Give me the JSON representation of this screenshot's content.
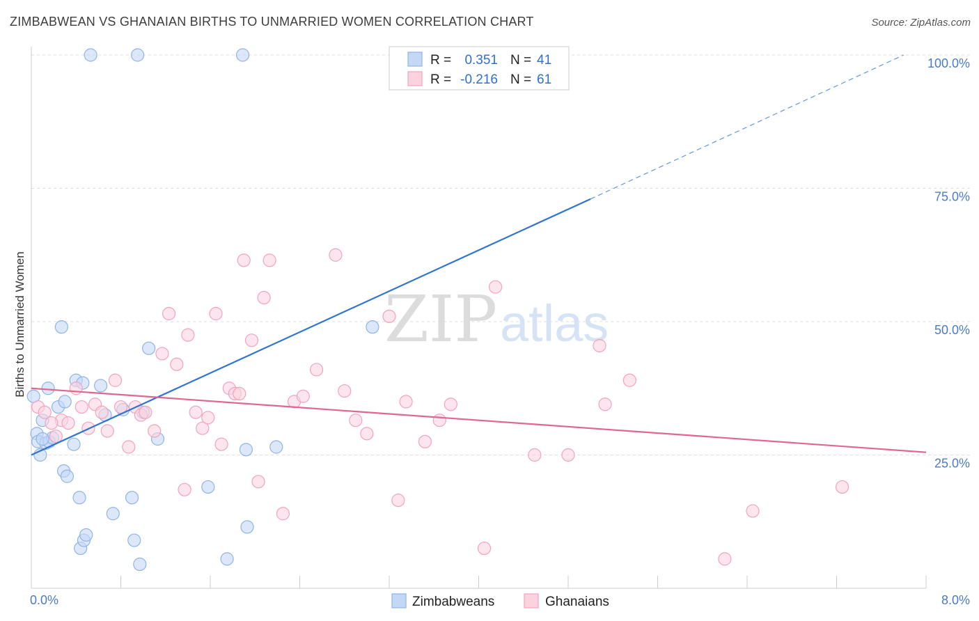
{
  "title": "ZIMBABWEAN VS GHANAIAN BIRTHS TO UNMARRIED WOMEN CORRELATION CHART",
  "source": "Source: ZipAtlas.com",
  "watermark": {
    "zip": "ZIP",
    "atlas": "atlas"
  },
  "colors": {
    "zimbabweans": "#8fb4e8",
    "zimbabweans_fill": "#c4d8f5",
    "zimbabweans_line": "#2f74d0",
    "ghanaians": "#f2a3bc",
    "ghanaians_fill": "#fad3df",
    "ghanaians_line": "#e0668f",
    "tick_text": "#4a7bc8",
    "grid": "#dddddd"
  },
  "legend": {
    "rows": [
      {
        "r_label": "R =",
        "r_value": "0.351",
        "n_label": "N =",
        "n_value": "41"
      },
      {
        "r_label": "R =",
        "r_value": "-0.216",
        "n_label": "N =",
        "n_value": "61"
      }
    ],
    "bottom": [
      "Zimbabweans",
      "Ghanaians"
    ]
  },
  "chart_data": {
    "type": "scatter",
    "title": "ZIMBABWEAN VS GHANAIAN BIRTHS TO UNMARRIED WOMEN CORRELATION CHART",
    "xlabel": "",
    "ylabel": "Births to Unmarried Women",
    "xlim": [
      0,
      8
    ],
    "ylim": [
      0,
      100
    ],
    "x_tick_labels": [
      "0.0%",
      "8.0%"
    ],
    "y_tick_labels": [
      "25.0%",
      "50.0%",
      "75.0%",
      "100.0%"
    ],
    "y_tick_values": [
      25,
      50,
      75,
      100
    ],
    "grid": true,
    "legend_position": "top-center",
    "series": [
      {
        "name": "Zimbabweans",
        "r": 0.351,
        "n": 41,
        "points": [
          [
            0.02,
            36.0
          ],
          [
            0.05,
            29.0
          ],
          [
            0.06,
            27.5
          ],
          [
            0.08,
            25.0
          ],
          [
            0.1,
            31.5
          ],
          [
            0.13,
            27.2
          ],
          [
            0.15,
            37.5
          ],
          [
            0.16,
            27.5
          ],
          [
            0.19,
            28.2
          ],
          [
            0.24,
            34.0
          ],
          [
            0.27,
            49.0
          ],
          [
            0.29,
            22.0
          ],
          [
            0.3,
            35.0
          ],
          [
            0.32,
            21.0
          ],
          [
            0.38,
            27.0
          ],
          [
            0.4,
            39.0
          ],
          [
            0.46,
            38.5
          ],
          [
            0.43,
            17.0
          ],
          [
            0.44,
            7.5
          ],
          [
            0.47,
            9.0
          ],
          [
            0.49,
            10.0
          ],
          [
            0.53,
            100.0
          ],
          [
            0.62,
            38.0
          ],
          [
            0.66,
            32.5
          ],
          [
            0.73,
            14.0
          ],
          [
            0.82,
            33.5
          ],
          [
            0.9,
            17.0
          ],
          [
            0.92,
            9.0
          ],
          [
            0.95,
            100.0
          ],
          [
            0.97,
            4.5
          ],
          [
            1.0,
            33.0
          ],
          [
            1.05,
            45.0
          ],
          [
            1.13,
            28.0
          ],
          [
            1.58,
            19.0
          ],
          [
            1.75,
            5.5
          ],
          [
            1.89,
            100.0
          ],
          [
            1.92,
            26.0
          ],
          [
            1.93,
            11.5
          ],
          [
            2.19,
            26.5
          ],
          [
            3.05,
            49.0
          ],
          [
            0.1,
            28.0
          ]
        ]
      },
      {
        "name": "Ghanaians",
        "r": -0.216,
        "n": 61,
        "points": [
          [
            0.06,
            34.0
          ],
          [
            0.12,
            33.0
          ],
          [
            0.27,
            31.5
          ],
          [
            0.33,
            31.0
          ],
          [
            0.22,
            28.5
          ],
          [
            0.4,
            37.5
          ],
          [
            0.45,
            34.0
          ],
          [
            0.51,
            30.0
          ],
          [
            0.57,
            34.5
          ],
          [
            0.63,
            33.0
          ],
          [
            0.68,
            29.5
          ],
          [
            0.75,
            39.0
          ],
          [
            0.8,
            34.0
          ],
          [
            0.87,
            26.5
          ],
          [
            0.93,
            34.0
          ],
          [
            0.98,
            32.5
          ],
          [
            1.02,
            33.0
          ],
          [
            1.1,
            29.5
          ],
          [
            1.17,
            44.0
          ],
          [
            1.23,
            51.5
          ],
          [
            1.3,
            42.0
          ],
          [
            1.37,
            18.5
          ],
          [
            1.4,
            47.5
          ],
          [
            1.47,
            33.0
          ],
          [
            1.53,
            30.0
          ],
          [
            1.58,
            32.0
          ],
          [
            1.65,
            51.5
          ],
          [
            1.7,
            27.0
          ],
          [
            1.77,
            37.5
          ],
          [
            1.82,
            36.5
          ],
          [
            1.86,
            36.5
          ],
          [
            1.9,
            61.5
          ],
          [
            1.97,
            46.5
          ],
          [
            2.03,
            20.0
          ],
          [
            2.08,
            54.5
          ],
          [
            2.13,
            61.5
          ],
          [
            2.25,
            14.0
          ],
          [
            2.35,
            35.0
          ],
          [
            2.43,
            36.0
          ],
          [
            2.55,
            41.0
          ],
          [
            2.72,
            62.5
          ],
          [
            2.8,
            37.0
          ],
          [
            2.9,
            31.5
          ],
          [
            3.0,
            29.0
          ],
          [
            3.2,
            51.0
          ],
          [
            3.28,
            16.5
          ],
          [
            3.35,
            35.0
          ],
          [
            3.52,
            27.5
          ],
          [
            3.65,
            31.5
          ],
          [
            3.75,
            34.5
          ],
          [
            4.05,
            7.5
          ],
          [
            4.15,
            56.5
          ],
          [
            4.5,
            25.0
          ],
          [
            4.8,
            25.0
          ],
          [
            5.08,
            45.5
          ],
          [
            5.13,
            34.5
          ],
          [
            5.35,
            39.0
          ],
          [
            6.2,
            5.5
          ],
          [
            6.45,
            14.5
          ],
          [
            7.25,
            19.0
          ],
          [
            0.18,
            31.0
          ]
        ]
      }
    ],
    "trend_lines": [
      {
        "series": "Zimbabweans",
        "x0": 0.0,
        "y0": 25.0,
        "x1": 5.0,
        "y1": 73.0,
        "dashed_to_x": 7.8,
        "dashed_to_y": 100.0
      },
      {
        "series": "Ghanaians",
        "x0": 0.0,
        "y0": 37.5,
        "x1": 8.0,
        "y1": 25.5
      }
    ]
  }
}
